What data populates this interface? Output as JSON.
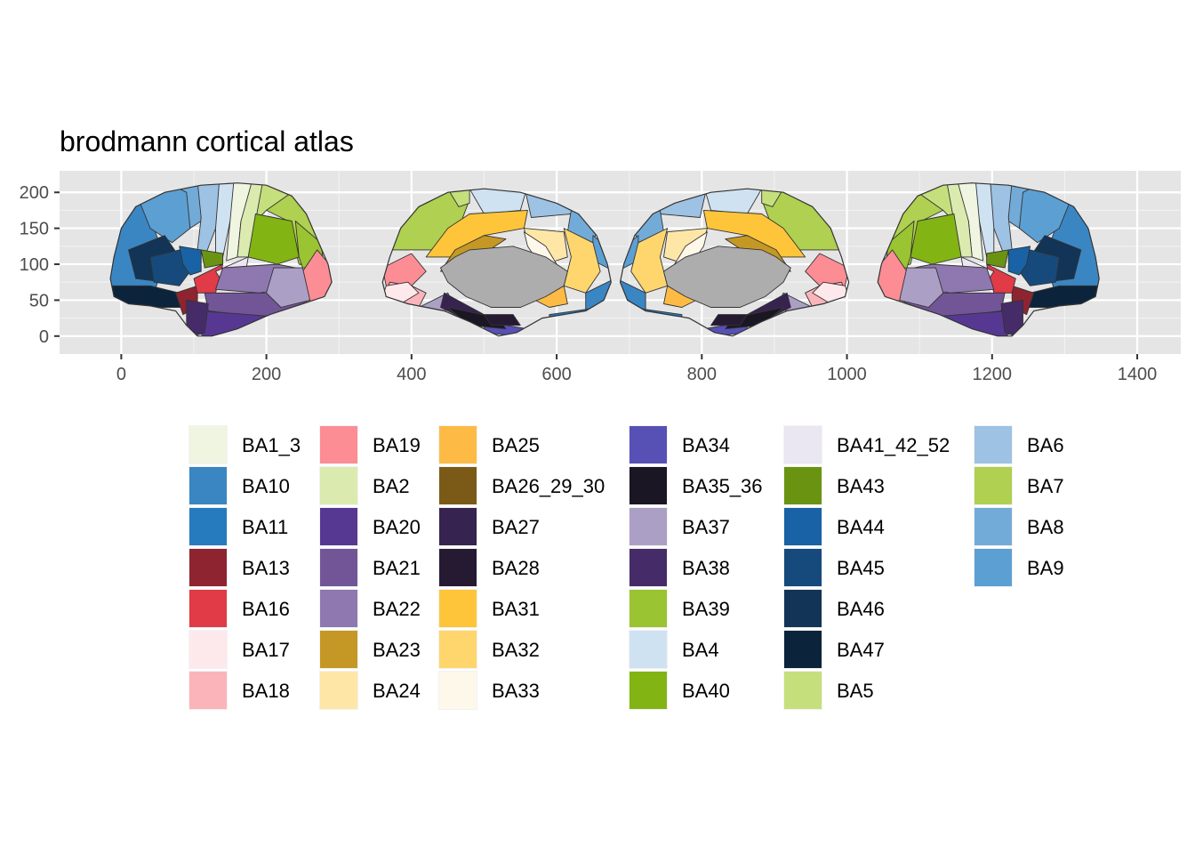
{
  "chart_data": {
    "type": "map",
    "title": "brodmann cortical atlas",
    "xlabel": "",
    "ylabel": "",
    "xlim": [
      -85,
      1460
    ],
    "ylim": [
      -25,
      230
    ],
    "x_ticks": [
      0,
      200,
      400,
      600,
      800,
      1000,
      1200,
      1400
    ],
    "y_ticks": [
      0,
      50,
      100,
      150,
      200
    ],
    "grid": true,
    "background": "#E5E5E5",
    "legend_position": "bottom",
    "outline_color": "#333333",
    "medial_wall_color": "#ADADAD",
    "legend": [
      {
        "label": "BA1_3",
        "color": "#F0F5E2"
      },
      {
        "label": "BA10",
        "color": "#3A86C3"
      },
      {
        "label": "BA11",
        "color": "#267BBF"
      },
      {
        "label": "BA13",
        "color": "#8E2430"
      },
      {
        "label": "BA16",
        "color": "#E03B47"
      },
      {
        "label": "BA17",
        "color": "#FDE9EB"
      },
      {
        "label": "BA18",
        "color": "#FCB4BB"
      },
      {
        "label": "BA19",
        "color": "#FC8D94"
      },
      {
        "label": "BA2",
        "color": "#DBEBB0"
      },
      {
        "label": "BA20",
        "color": "#563892"
      },
      {
        "label": "BA21",
        "color": "#715597"
      },
      {
        "label": "BA22",
        "color": "#8F77B0"
      },
      {
        "label": "BA23",
        "color": "#C59825"
      },
      {
        "label": "BA24",
        "color": "#FEE7A6"
      },
      {
        "label": "BA25",
        "color": "#FDBB45"
      },
      {
        "label": "BA26_29_30",
        "color": "#7B5A18"
      },
      {
        "label": "BA27",
        "color": "#36234F"
      },
      {
        "label": "BA28",
        "color": "#261A33"
      },
      {
        "label": "BA31",
        "color": "#FEC53A"
      },
      {
        "label": "BA32",
        "color": "#FED66D"
      },
      {
        "label": "BA33",
        "color": "#FEF8EA"
      },
      {
        "label": "BA34",
        "color": "#5750B5"
      },
      {
        "label": "BA35_36",
        "color": "#1B1623"
      },
      {
        "label": "BA37",
        "color": "#AC9FC6"
      },
      {
        "label": "BA38",
        "color": "#452C68"
      },
      {
        "label": "BA39",
        "color": "#9AC431"
      },
      {
        "label": "BA4",
        "color": "#CFE2F2"
      },
      {
        "label": "BA40",
        "color": "#82B414"
      },
      {
        "label": "BA41_42_52",
        "color": "#EAE6F2"
      },
      {
        "label": "BA43",
        "color": "#6B9312"
      },
      {
        "label": "BA44",
        "color": "#1862A5"
      },
      {
        "label": "BA45",
        "color": "#174A7C"
      },
      {
        "label": "BA46",
        "color": "#123456"
      },
      {
        "label": "BA47",
        "color": "#0C243B"
      },
      {
        "label": "BA5",
        "color": "#C6DF7D"
      },
      {
        "label": "BA6",
        "color": "#9DC2E3"
      },
      {
        "label": "BA7",
        "color": "#AFD050"
      },
      {
        "label": "BA8",
        "color": "#72ABD8"
      },
      {
        "label": "BA9",
        "color": "#5C9FD3"
      }
    ]
  }
}
